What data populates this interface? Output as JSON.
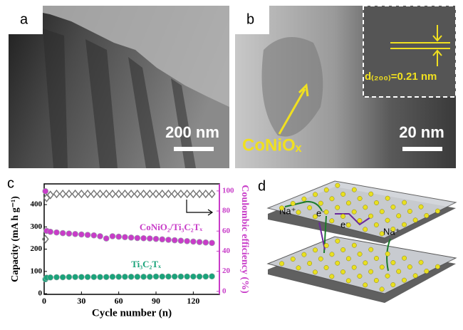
{
  "panel_a": {
    "label": "a",
    "scale_bar": "200 nm"
  },
  "panel_b": {
    "label": "b",
    "scale_bar": "20 nm",
    "annotation": "CoNiOₓ",
    "lattice": "d₍₂₀₀₎=0.21 nm"
  },
  "panel_d": {
    "label": "d",
    "annotations": [
      "Na⁺",
      "e⁻",
      "e⁻",
      "Na⁺"
    ]
  },
  "chart_data": {
    "type": "scatter",
    "panel_label": "c",
    "x_label": "Cycle number (n)",
    "y_label": "Capacity (mA h g⁻¹)",
    "y2_label": "Coulombic efficiency (%)",
    "xlim": [
      0,
      141
    ],
    "ylim": [
      -3,
      493
    ],
    "y2lim": [
      -3,
      107
    ],
    "xticks": [
      0,
      30,
      60,
      90,
      120
    ],
    "yticks": [
      0,
      100,
      200,
      300,
      400
    ],
    "y2ticks": [
      0,
      20,
      40,
      60,
      80,
      100
    ],
    "x": [
      1,
      2,
      5,
      10,
      15,
      20,
      25,
      30,
      35,
      40,
      45,
      50,
      55,
      60,
      65,
      70,
      75,
      80,
      85,
      90,
      95,
      100,
      105,
      110,
      115,
      120,
      125,
      130,
      135
    ],
    "series": [
      {
        "name": "CoNiO₂/Ti₃C₂Tₓ",
        "color": "#c83cc8",
        "marker": "circle",
        "values": [
          460,
          282,
          278,
          275,
          272,
          270,
          268,
          266,
          264,
          262,
          258,
          248,
          258,
          256,
          254,
          252,
          250,
          249,
          248,
          246,
          244,
          242,
          240,
          238,
          236,
          234,
          232,
          230,
          228
        ]
      },
      {
        "name": "Ti₃C₂Tₓ",
        "color": "#1aa37a",
        "marker": "circle",
        "values": [
          65,
          72,
          73,
          74,
          74,
          75,
          75,
          75,
          75,
          75,
          75,
          75,
          76,
          76,
          76,
          76,
          76,
          76,
          76,
          77,
          77,
          77,
          77,
          77,
          77,
          77,
          77,
          77,
          78
        ]
      },
      {
        "color": "#777777",
        "marker": "diamond",
        "axis": "y2",
        "values": [
          52,
          93,
          96,
          97,
          97,
          97,
          97,
          97,
          97,
          97,
          97,
          97,
          97,
          97,
          97,
          97,
          97,
          97,
          97,
          97,
          97,
          97,
          97,
          97,
          97,
          97,
          97,
          97,
          97
        ]
      }
    ]
  }
}
